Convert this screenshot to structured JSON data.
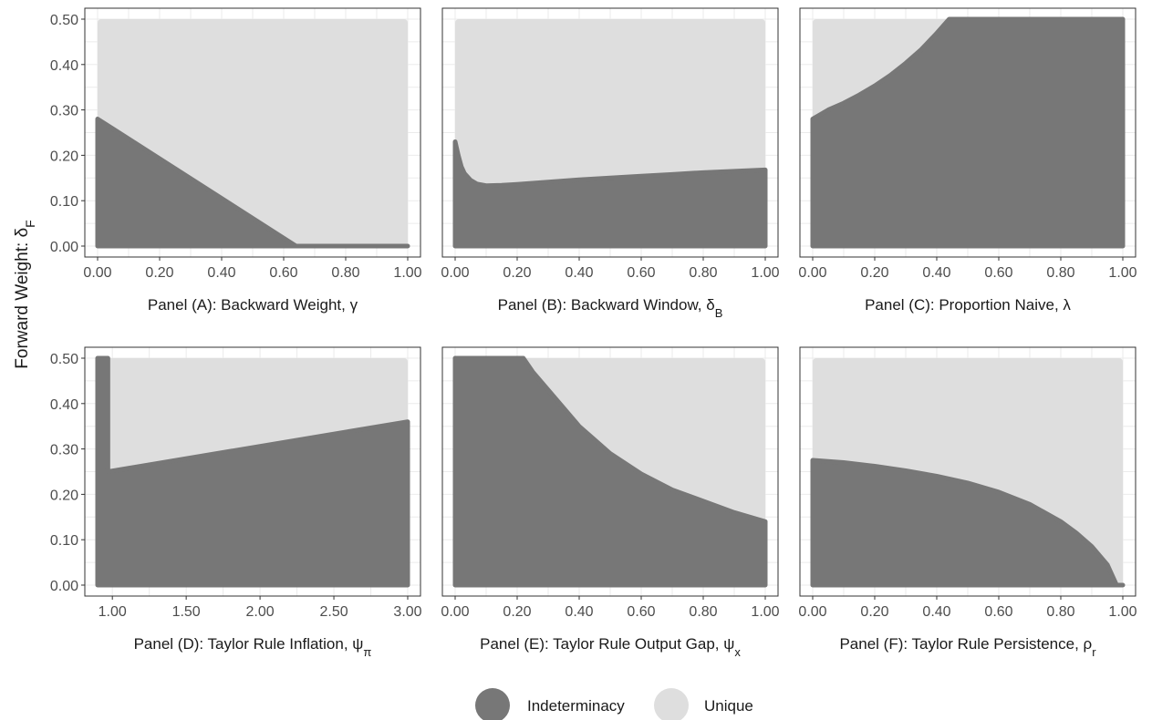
{
  "figure": {
    "ylabel": {
      "main": "Forward Weight: δ",
      "sub": "F"
    },
    "legend": {
      "position": "bottom",
      "items": [
        {
          "label": "Indeterminacy",
          "color": "#777777"
        },
        {
          "label": "Unique",
          "color": "#dedede"
        }
      ]
    },
    "colors": {
      "indeterminacy": "#777777",
      "unique": "#dedede",
      "grid": "#ebebeb",
      "border": "#333333"
    }
  },
  "chart_data": [
    {
      "type": "area",
      "panel": "A",
      "xlabel": {
        "main": "Panel (A): Backward Weight, γ",
        "sub": ""
      },
      "xlim": [
        0,
        1
      ],
      "ylim": [
        0,
        0.5
      ],
      "xticks": [
        0,
        0.2,
        0.4,
        0.6,
        0.8,
        1.0
      ],
      "xtick_labels": [
        "0.00",
        "0.20",
        "0.40",
        "0.60",
        "0.80",
        "1.00"
      ],
      "yticks": [
        0,
        0.1,
        0.2,
        0.3,
        0.4,
        0.5
      ],
      "ytick_labels": [
        "0.00",
        "0.10",
        "0.20",
        "0.30",
        "0.40",
        "0.50"
      ],
      "grid": true,
      "boundary": {
        "x": [
          0,
          0.64,
          1.0
        ],
        "y": [
          0.28,
          0,
          0
        ]
      },
      "indeterminacy_region": "below"
    },
    {
      "type": "area",
      "panel": "B",
      "xlabel": {
        "main": "Panel (B): Backward Window, δ",
        "sub": "B"
      },
      "xlim": [
        0,
        1
      ],
      "ylim": [
        0,
        0.5
      ],
      "xticks": [
        0,
        0.2,
        0.4,
        0.6,
        0.8,
        1.0
      ],
      "xtick_labels": [
        "0.00",
        "0.20",
        "0.40",
        "0.60",
        "0.80",
        "1.00"
      ],
      "yticks": [
        0,
        0.1,
        0.2,
        0.3,
        0.4,
        0.5
      ],
      "ytick_labels": [
        "0.00",
        "0.10",
        "0.20",
        "0.30",
        "0.40",
        "0.50"
      ],
      "grid": true,
      "boundary": {
        "x": [
          0,
          0.01,
          0.02,
          0.03,
          0.05,
          0.07,
          0.1,
          0.15,
          0.2,
          0.3,
          0.4,
          0.5,
          0.6,
          0.7,
          0.8,
          0.9,
          1.0
        ],
        "y": [
          0.23,
          0.2,
          0.175,
          0.16,
          0.145,
          0.137,
          0.133,
          0.134,
          0.136,
          0.141,
          0.146,
          0.15,
          0.154,
          0.158,
          0.162,
          0.165,
          0.168
        ]
      },
      "indeterminacy_region": "below"
    },
    {
      "type": "area",
      "panel": "C",
      "xlabel": {
        "main": "Panel (C): Proportion Naive, λ",
        "sub": ""
      },
      "xlim": [
        0,
        1
      ],
      "ylim": [
        0,
        0.5
      ],
      "xticks": [
        0,
        0.2,
        0.4,
        0.6,
        0.8,
        1.0
      ],
      "xtick_labels": [
        "0.00",
        "0.20",
        "0.40",
        "0.60",
        "0.80",
        "1.00"
      ],
      "yticks": [
        0,
        0.1,
        0.2,
        0.3,
        0.4,
        0.5
      ],
      "ytick_labels": [
        "0.00",
        "0.10",
        "0.20",
        "0.30",
        "0.40",
        "0.50"
      ],
      "grid": true,
      "boundary": {
        "x": [
          0,
          0.05,
          0.1,
          0.15,
          0.2,
          0.25,
          0.3,
          0.35,
          0.4,
          0.44,
          0.45,
          1.0
        ],
        "y": [
          0.28,
          0.3,
          0.315,
          0.333,
          0.353,
          0.376,
          0.403,
          0.433,
          0.469,
          0.5,
          0.5,
          0.5
        ]
      },
      "indeterminacy_region": "below"
    },
    {
      "type": "area",
      "panel": "D",
      "xlabel": {
        "main": "Panel (D): Taylor Rule Inflation, ψ",
        "sub": "π"
      },
      "xlim": [
        0.9,
        3.0
      ],
      "ylim": [
        0,
        0.5
      ],
      "xticks": [
        1.0,
        1.5,
        2.0,
        2.5,
        3.0
      ],
      "xtick_labels": [
        "1.00",
        "1.50",
        "2.00",
        "2.50",
        "3.00"
      ],
      "yticks": [
        0,
        0.1,
        0.2,
        0.3,
        0.4,
        0.5
      ],
      "ytick_labels": [
        "0.00",
        "0.10",
        "0.20",
        "0.30",
        "0.40",
        "0.50"
      ],
      "grid": true,
      "boundary": {
        "x": [
          0.9,
          0.96,
          0.97,
          0.97,
          3.0
        ],
        "y": [
          0.5,
          0.5,
          0.5,
          0.25,
          0.36
        ]
      },
      "indeterminacy_region": "below"
    },
    {
      "type": "area",
      "panel": "E",
      "xlabel": {
        "main": "Panel (E): Taylor Rule Output Gap, ψ",
        "sub": "x"
      },
      "xlim": [
        0,
        1
      ],
      "ylim": [
        0,
        0.5
      ],
      "xticks": [
        0,
        0.2,
        0.4,
        0.6,
        0.8,
        1.0
      ],
      "xtick_labels": [
        "0.00",
        "0.20",
        "0.40",
        "0.60",
        "0.80",
        "1.00"
      ],
      "yticks": [
        0,
        0.1,
        0.2,
        0.3,
        0.4,
        0.5
      ],
      "ytick_labels": [
        "0.00",
        "0.10",
        "0.20",
        "0.30",
        "0.40",
        "0.50"
      ],
      "grid": true,
      "boundary": {
        "x": [
          0,
          0.22,
          0.25,
          0.3,
          0.35,
          0.4,
          0.45,
          0.5,
          0.6,
          0.7,
          0.8,
          0.9,
          1.0
        ],
        "y": [
          0.5,
          0.5,
          0.47,
          0.43,
          0.39,
          0.35,
          0.32,
          0.29,
          0.245,
          0.21,
          0.185,
          0.16,
          0.14
        ]
      },
      "indeterminacy_region": "below"
    },
    {
      "type": "area",
      "panel": "F",
      "xlabel": {
        "main": "Panel (F): Taylor Rule Persistence, ρ",
        "sub": "r"
      },
      "xlim": [
        0,
        1
      ],
      "ylim": [
        0,
        0.5
      ],
      "xticks": [
        0,
        0.2,
        0.4,
        0.6,
        0.8,
        1.0
      ],
      "xtick_labels": [
        "0.00",
        "0.20",
        "0.40",
        "0.60",
        "0.80",
        "1.00"
      ],
      "yticks": [
        0,
        0.1,
        0.2,
        0.3,
        0.4,
        0.5
      ],
      "ytick_labels": [
        "0.00",
        "0.10",
        "0.20",
        "0.30",
        "0.40",
        "0.50"
      ],
      "grid": true,
      "boundary": {
        "x": [
          0,
          0.1,
          0.2,
          0.3,
          0.4,
          0.5,
          0.6,
          0.7,
          0.8,
          0.85,
          0.9,
          0.95,
          0.98,
          1.0
        ],
        "y": [
          0.275,
          0.27,
          0.262,
          0.252,
          0.24,
          0.225,
          0.205,
          0.178,
          0.14,
          0.115,
          0.085,
          0.045,
          0.0,
          0.0
        ]
      },
      "indeterminacy_region": "below"
    }
  ]
}
